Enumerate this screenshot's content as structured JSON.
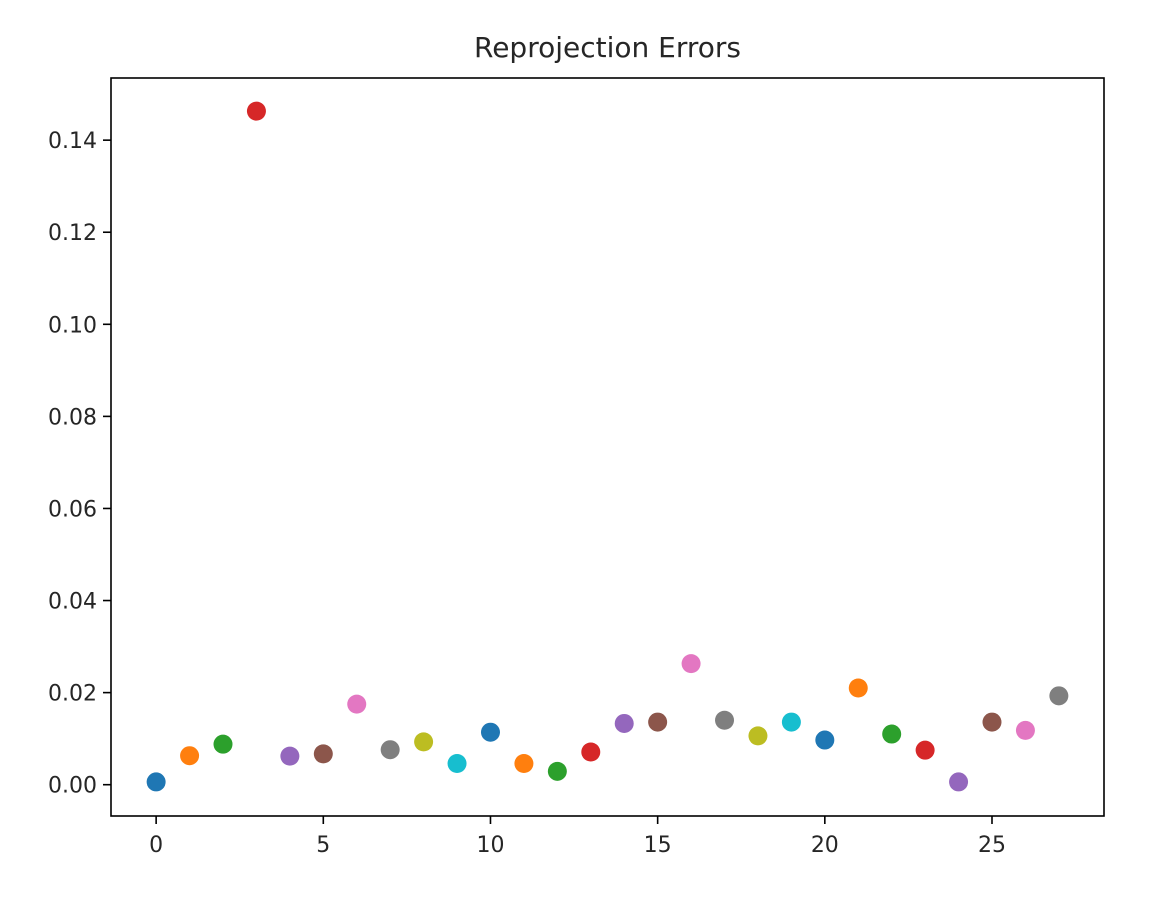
{
  "chart_data": {
    "type": "scatter",
    "title": "Reprojection Errors",
    "xlabel": "",
    "ylabel": "",
    "xlim": [
      -1.35,
      28.35
    ],
    "ylim": [
      -0.0068,
      0.1535
    ],
    "xticks": [
      0,
      5,
      10,
      15,
      20,
      25
    ],
    "xtick_labels": [
      "0",
      "5",
      "10",
      "15",
      "20",
      "25"
    ],
    "yticks": [
      0.0,
      0.02,
      0.04,
      0.06,
      0.08,
      0.1,
      0.12,
      0.14
    ],
    "ytick_labels": [
      "0.00",
      "0.02",
      "0.04",
      "0.06",
      "0.08",
      "0.10",
      "0.12",
      "0.14"
    ],
    "grid": false,
    "legend": "none",
    "x": [
      0,
      1,
      2,
      3,
      4,
      5,
      6,
      7,
      8,
      9,
      10,
      11,
      12,
      13,
      14,
      15,
      16,
      17,
      18,
      19,
      20,
      21,
      22,
      23,
      24,
      25,
      26,
      27
    ],
    "y": [
      0.0006,
      0.0063,
      0.0088,
      0.1463,
      0.0062,
      0.0067,
      0.0175,
      0.0076,
      0.0093,
      0.0046,
      0.0114,
      0.0046,
      0.0029,
      0.0071,
      0.0133,
      0.0136,
      0.0263,
      0.014,
      0.0106,
      0.0136,
      0.0097,
      0.021,
      0.011,
      0.0075,
      0.0006,
      0.0136,
      0.0118,
      0.0193
    ],
    "colors": [
      "#1f77b4",
      "#ff7f0e",
      "#2ca02c",
      "#d62728",
      "#9467bd",
      "#8c564b",
      "#e377c2",
      "#7f7f7f",
      "#bcbd22",
      "#17becf"
    ],
    "marker": "circle",
    "axes_color": "#000000",
    "text_color": "#262626"
  }
}
